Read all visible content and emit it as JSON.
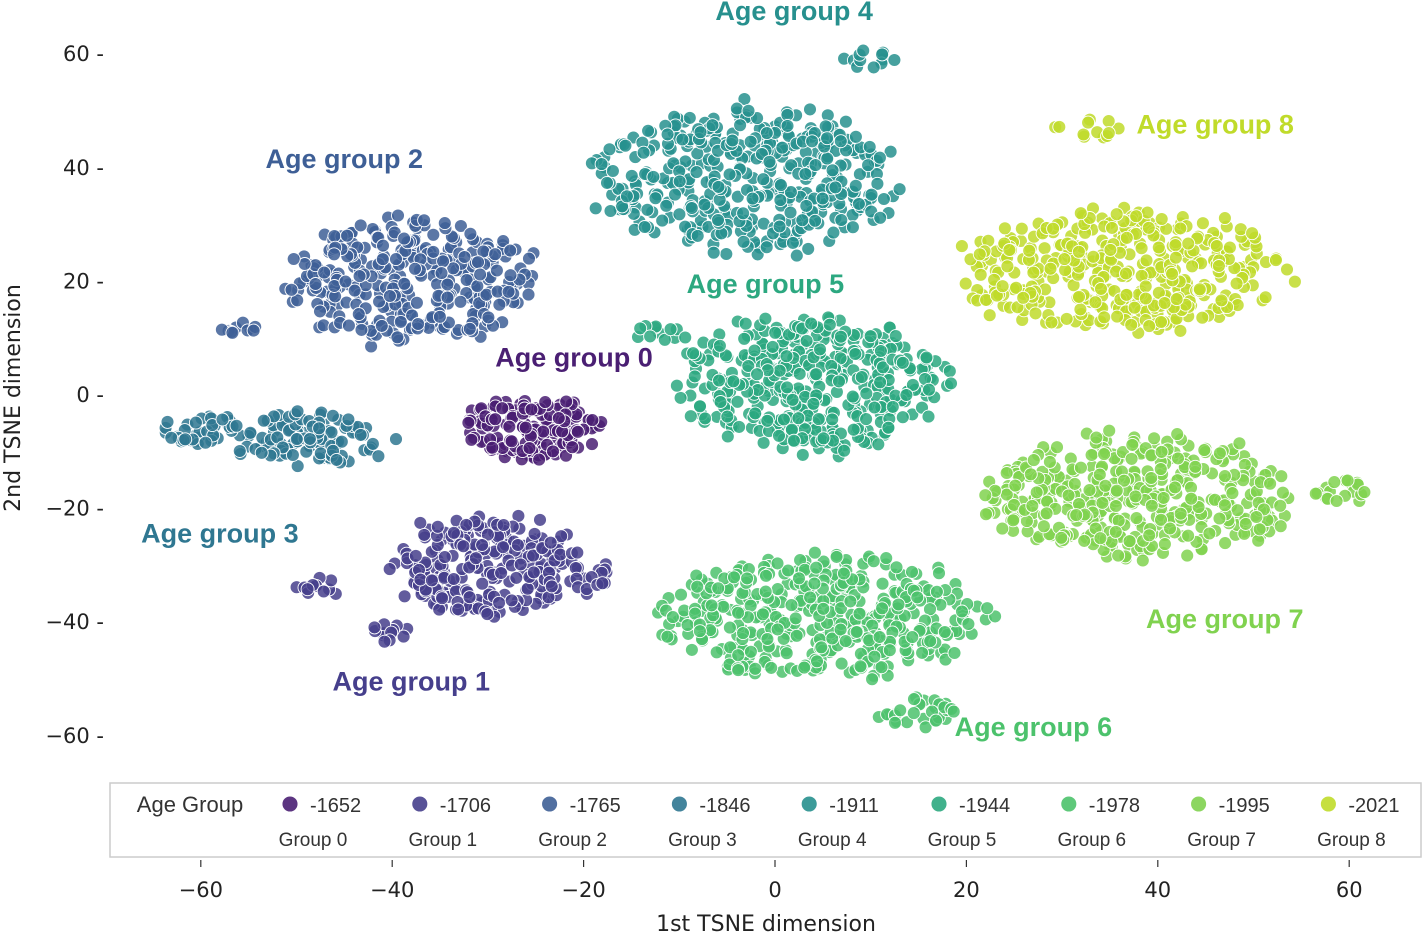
{
  "chart_data": {
    "type": "scatter",
    "title": "",
    "xlabel": "1st TSNE dimension",
    "ylabel": "2nd TSNE dimension",
    "xlim": [
      -70,
      67
    ],
    "ylim": [
      -67,
      65
    ],
    "xticks": [
      -60,
      -40,
      -20,
      0,
      20,
      40,
      60
    ],
    "yticks": [
      -60,
      -40,
      -20,
      0,
      20,
      40,
      60
    ],
    "xtick_labels": [
      "−60",
      "−40",
      "−20",
      "0",
      "20",
      "40",
      "60"
    ],
    "ytick_labels": [
      "−60 -",
      "−40 -",
      "−20 -",
      "0 -",
      "20 -",
      "40 -",
      "60 -"
    ],
    "grid": false,
    "legend": {
      "title": "Age Group",
      "placement": "bottom",
      "entries": [
        {
          "label": "-1652",
          "sub": "Group 0"
        },
        {
          "label": "-1706",
          "sub": "Group 1"
        },
        {
          "label": "-1765",
          "sub": "Group 2"
        },
        {
          "label": "-1846",
          "sub": "Group 3"
        },
        {
          "label": "-1911",
          "sub": "Group 4"
        },
        {
          "label": "-1944",
          "sub": "Group 5"
        },
        {
          "label": "-1978",
          "sub": "Group 6"
        },
        {
          "label": "-1995",
          "sub": "Group 7"
        },
        {
          "label": "-2021",
          "sub": "Group 8"
        }
      ]
    },
    "series": [
      {
        "group": 0,
        "color": "#4a1f73",
        "annotation": "Age group 0",
        "label_pos": [
          -21,
          5
        ],
        "clusters": [
          {
            "center": [
              -25,
              -6
            ],
            "spread": [
              7.5,
              5.5
            ],
            "n": 170
          }
        ]
      },
      {
        "group": 1,
        "color": "#463f8c",
        "annotation": "Age group 1",
        "label_pos": [
          -38,
          -52
        ],
        "clusters": [
          {
            "center": [
              -30,
              -30
            ],
            "spread": [
              10,
              9
            ],
            "n": 260
          },
          {
            "center": [
              -48,
              -34
            ],
            "spread": [
              2.5,
              1.8
            ],
            "n": 14
          },
          {
            "center": [
              -40,
              -42
            ],
            "spread": [
              2.5,
              1.8
            ],
            "n": 12
          },
          {
            "center": [
              -19,
              -32
            ],
            "spread": [
              2.5,
              3
            ],
            "n": 14
          }
        ]
      },
      {
        "group": 2,
        "color": "#3e5f96",
        "annotation": "Age group 2",
        "label_pos": [
          -45,
          40
        ],
        "clusters": [
          {
            "center": [
              -38,
              20
            ],
            "spread": [
              13,
              11
            ],
            "n": 330
          },
          {
            "center": [
              -56,
              12
            ],
            "spread": [
              2,
              1.5
            ],
            "n": 10
          }
        ]
      },
      {
        "group": 3,
        "color": "#2f7791",
        "annotation": "Age group 3",
        "label_pos": [
          -58,
          -26
        ],
        "clusters": [
          {
            "center": [
              -49,
              -8
            ],
            "spread": [
              9,
              5
            ],
            "n": 120
          },
          {
            "center": [
              -60,
              -6
            ],
            "spread": [
              4,
              3
            ],
            "n": 40
          }
        ]
      },
      {
        "group": 4,
        "color": "#27908e",
        "annotation": "Age group 4",
        "label_pos": [
          2,
          66
        ],
        "clusters": [
          {
            "center": [
              -3,
              38
            ],
            "spread": [
              16,
              13
            ],
            "n": 430
          },
          {
            "center": [
              10,
              59
            ],
            "spread": [
              3,
              2
            ],
            "n": 12
          }
        ]
      },
      {
        "group": 5,
        "color": "#2ca880",
        "annotation": "Age group 5",
        "label_pos": [
          -1,
          18
        ],
        "clusters": [
          {
            "center": [
              4,
              2
            ],
            "spread": [
              14,
              12
            ],
            "n": 430
          },
          {
            "center": [
              -12,
              11
            ],
            "spread": [
              3,
              2
            ],
            "n": 12
          }
        ]
      },
      {
        "group": 6,
        "color": "#4cc26c",
        "annotation": "Age group 6",
        "label_pos": [
          27,
          -60
        ],
        "clusters": [
          {
            "center": [
              5,
              -39
            ],
            "spread": [
              17,
              11
            ],
            "n": 430
          },
          {
            "center": [
              15,
              -56
            ],
            "spread": [
              4,
              3
            ],
            "n": 30
          }
        ]
      },
      {
        "group": 7,
        "color": "#80d24f",
        "annotation": "Age group 7",
        "label_pos": [
          47,
          -41
        ],
        "clusters": [
          {
            "center": [
              38,
              -18
            ],
            "spread": [
              16,
              11
            ],
            "n": 420
          },
          {
            "center": [
              59,
              -17
            ],
            "spread": [
              3,
              2
            ],
            "n": 18
          }
        ]
      },
      {
        "group": 8,
        "color": "#c0db2a",
        "annotation": "Age group 8",
        "label_pos": [
          46,
          46
        ],
        "clusters": [
          {
            "center": [
              36,
              22
            ],
            "spread": [
              17,
              11
            ],
            "n": 420
          },
          {
            "center": [
              33,
              47
            ],
            "spread": [
              4,
              2
            ],
            "n": 12
          }
        ]
      }
    ]
  }
}
